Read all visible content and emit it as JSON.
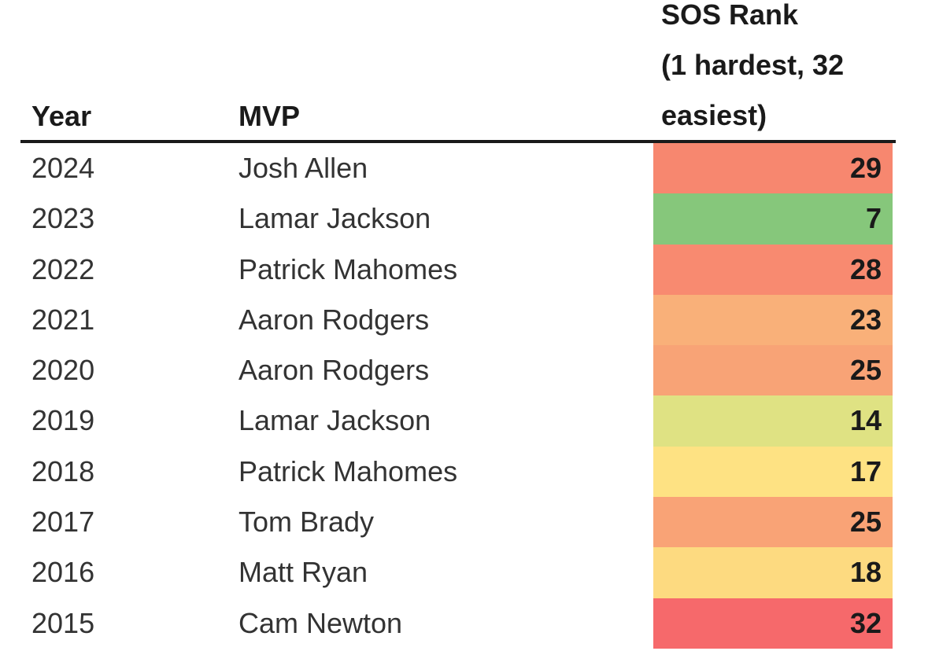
{
  "table": {
    "headers": {
      "year": "Year",
      "mvp": "MVP",
      "sos_line1": "SOS Rank",
      "sos_line2": "(1 hardest, 32",
      "sos_line3": "easiest)"
    },
    "rows": [
      {
        "year": "2024",
        "mvp": "Josh Allen",
        "sos_rank": "29",
        "color": "#f7876f"
      },
      {
        "year": "2023",
        "mvp": "Lamar Jackson",
        "sos_rank": "7",
        "color": "#86c77b"
      },
      {
        "year": "2022",
        "mvp": "Patrick Mahomes",
        "sos_rank": "28",
        "color": "#f88a70"
      },
      {
        "year": "2021",
        "mvp": "Aaron Rodgers",
        "sos_rank": "23",
        "color": "#f9b079"
      },
      {
        "year": "2020",
        "mvp": "Aaron Rodgers",
        "sos_rank": "25",
        "color": "#f8a376"
      },
      {
        "year": "2019",
        "mvp": "Lamar Jackson",
        "sos_rank": "14",
        "color": "#dfe283"
      },
      {
        "year": "2018",
        "mvp": "Patrick Mahomes",
        "sos_rank": "17",
        "color": "#fee283"
      },
      {
        "year": "2017",
        "mvp": "Tom Brady",
        "sos_rank": "25",
        "color": "#f9a376"
      },
      {
        "year": "2016",
        "mvp": "Matt Ryan",
        "sos_rank": "18",
        "color": "#fdda80"
      },
      {
        "year": "2015",
        "mvp": "Cam Newton",
        "sos_rank": "32",
        "color": "#f6696b"
      }
    ]
  }
}
